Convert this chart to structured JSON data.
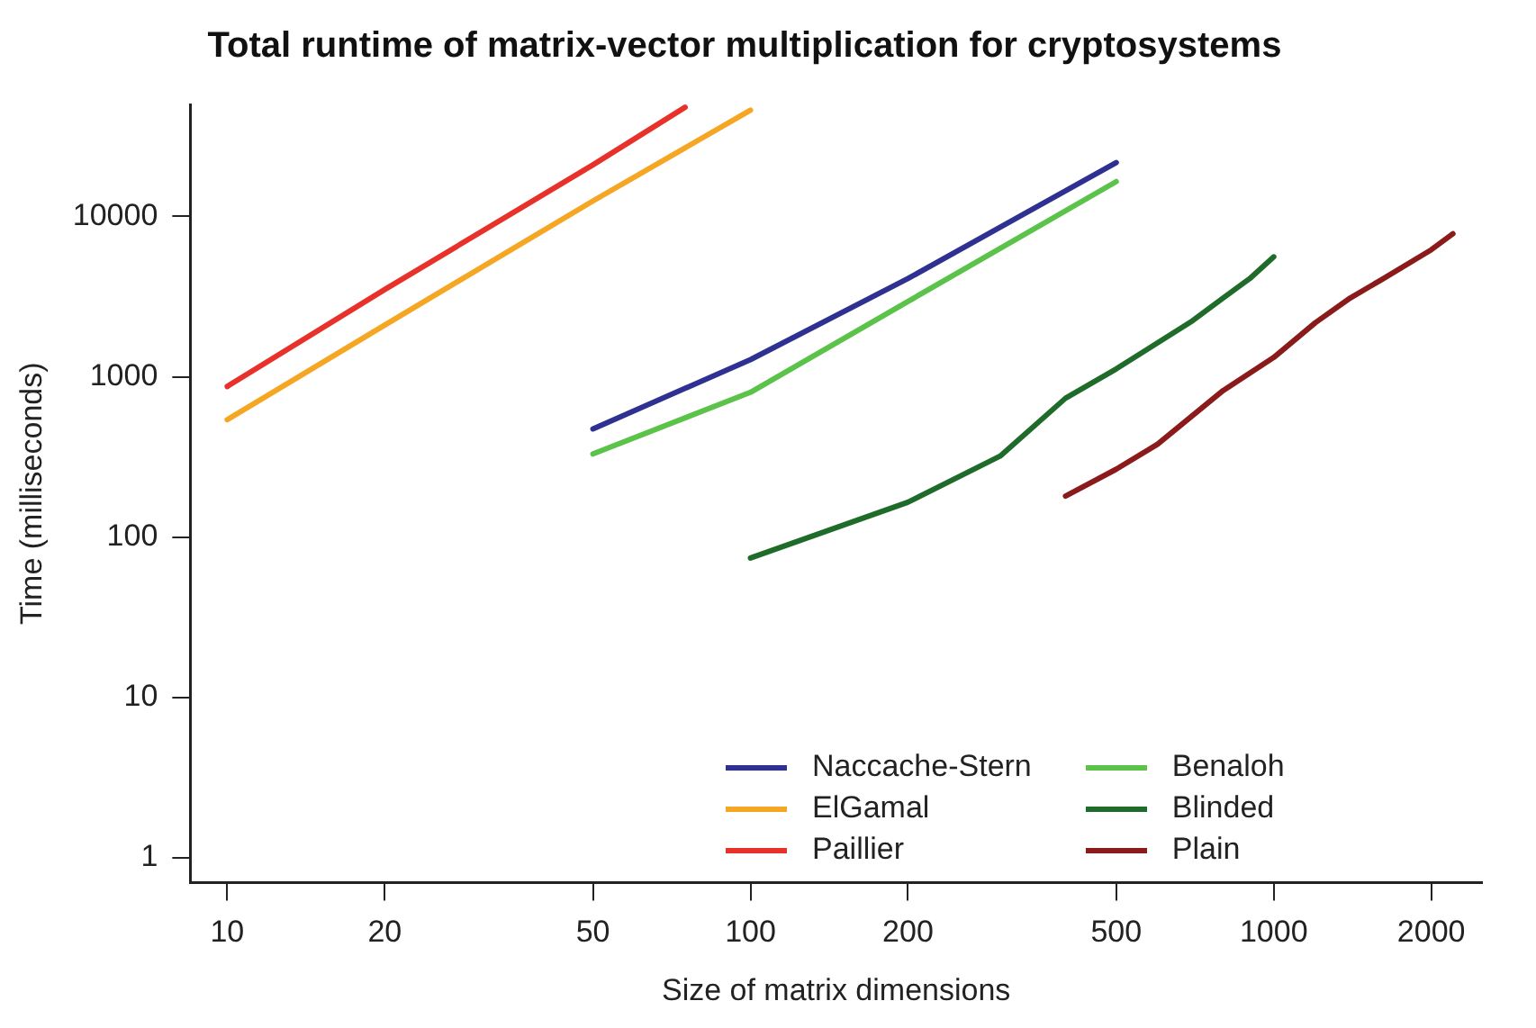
{
  "chart_data": {
    "type": "line",
    "title": "Total runtime of matrix-vector multiplication for cryptosystems",
    "xlabel": "Size of matrix dimensions",
    "ylabel": "Time (milliseconds)",
    "log": "xy",
    "grid": false,
    "legend": "bottom right",
    "marker": "none",
    "line_style": "solid",
    "xlim": [
      8.5,
      2500
    ],
    "xticks": [
      10,
      20,
      50,
      100,
      200,
      500,
      1000,
      2000
    ],
    "ylim": [
      0.7,
      50000
    ],
    "yticks": [
      1,
      10,
      100,
      1000,
      10000
    ],
    "series": [
      {
        "name": "Naccache-Stern",
        "color": "#2e3192",
        "x": [
          50,
          100,
          200,
          500
        ],
        "values": [
          473,
          1280,
          4100,
          21700
        ]
      },
      {
        "name": "ElGamal",
        "color": "#f5a623",
        "x": [
          10,
          20,
          50,
          100
        ],
        "values": [
          540,
          2100,
          12500,
          46000
        ]
      },
      {
        "name": "Paillier",
        "color": "#e8312a",
        "x": [
          10,
          20,
          50,
          75
        ],
        "values": [
          870,
          3500,
          21000,
          48000
        ]
      },
      {
        "name": "Benaloh",
        "color": "#5cc34a",
        "x": [
          50,
          100,
          200,
          500
        ],
        "values": [
          330,
          800,
          2950,
          16500
        ]
      },
      {
        "name": "Blinded",
        "color": "#1e6b2a",
        "x": [
          100,
          200,
          300,
          400,
          500,
          700,
          800,
          900,
          1000
        ],
        "values": [
          74,
          165,
          320,
          735,
          1120,
          2240,
          3100,
          4100,
          5600
        ]
      },
      {
        "name": "Plain",
        "color": "#8b1a1a",
        "x": [
          400,
          500,
          600,
          800,
          1000,
          1200,
          1400,
          1600,
          2000,
          2200
        ],
        "values": [
          180,
          265,
          380,
          820,
          1320,
          2170,
          3100,
          4000,
          6200,
          7800
        ]
      }
    ]
  }
}
